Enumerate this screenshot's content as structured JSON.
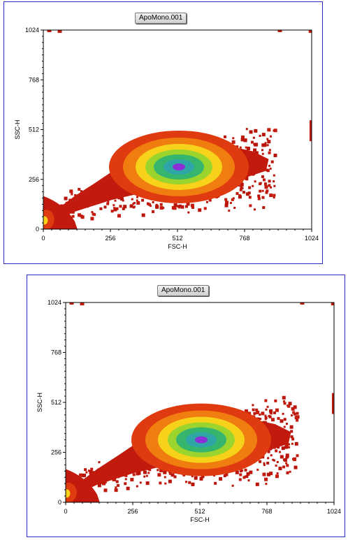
{
  "chart_data": [
    {
      "type": "heatmap",
      "title": "ApoMono.001",
      "xlabel": "FSC-H",
      "ylabel": "SSC-H",
      "xlim": [
        0,
        1024
      ],
      "ylim": [
        0,
        1024
      ],
      "x_ticks": [
        "0",
        "256",
        "512",
        "768",
        "1024"
      ],
      "y_ticks": [
        "0",
        "256",
        "512",
        "768",
        "1024"
      ],
      "density_peak": {
        "x": 512,
        "y": 320
      },
      "grid": false,
      "colors": [
        "#c21a0c",
        "#e03a10",
        "#f07d10",
        "#f7d21a",
        "#9bd42c",
        "#35b56e",
        "#2ea6a8",
        "#8b30d6"
      ]
    },
    {
      "type": "heatmap",
      "title": "ApoMono.001",
      "xlabel": "FSC-H",
      "ylabel": "SSC-H",
      "xlim": [
        0,
        1024
      ],
      "ylim": [
        0,
        1024
      ],
      "x_ticks": [
        "0",
        "256",
        "512",
        "768",
        "1024"
      ],
      "y_ticks": [
        "0",
        "256",
        "512",
        "768",
        "1024"
      ],
      "density_peak": {
        "x": 512,
        "y": 320
      },
      "grid": false,
      "colors": [
        "#c21a0c",
        "#e03a10",
        "#f07d10",
        "#f7d21a",
        "#9bd42c",
        "#35b56e",
        "#2ea6a8",
        "#8b30d6"
      ]
    }
  ]
}
